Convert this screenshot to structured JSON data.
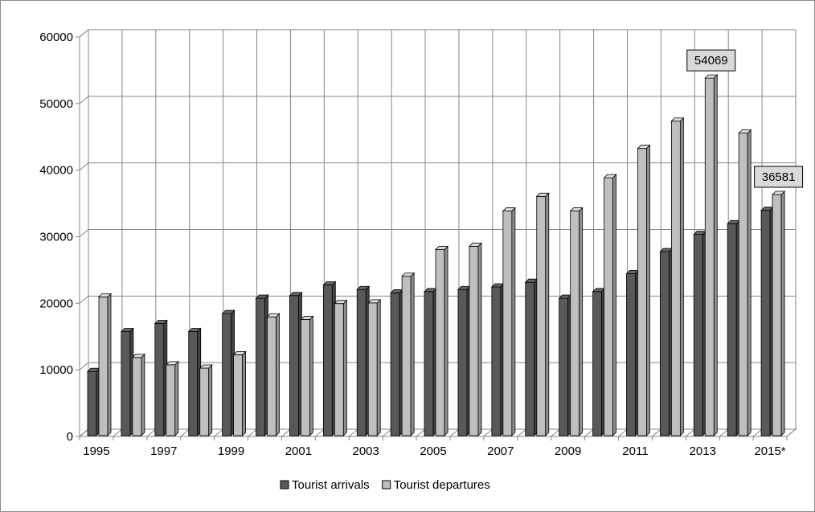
{
  "chart_data": {
    "type": "bar",
    "style": "3d-clustered-column",
    "categories": [
      "1995",
      "1996",
      "1997",
      "1998",
      "1999",
      "2000",
      "2001",
      "2002",
      "2003",
      "2004",
      "2005",
      "2006",
      "2007",
      "2008",
      "2009",
      "2010",
      "2011",
      "2012",
      "2013",
      "2014",
      "2015*"
    ],
    "x_tick_labels": [
      "1995",
      "1997",
      "1999",
      "2001",
      "2003",
      "2005",
      "2007",
      "2009",
      "2011",
      "2013",
      "2015*"
    ],
    "series": [
      {
        "name": "Tourist arrivals",
        "color": "#595959",
        "values": [
          10000,
          16000,
          17200,
          16000,
          18700,
          21000,
          21400,
          23000,
          22300,
          21800,
          22000,
          22300,
          22700,
          23400,
          21000,
          22000,
          24700,
          28000,
          30600,
          32200,
          34200
        ]
      },
      {
        "name": "Tourist departures",
        "color": "#bfbfbf",
        "values": [
          21200,
          12100,
          11000,
          10500,
          12500,
          18200,
          17800,
          20200,
          20300,
          24300,
          28300,
          28800,
          34100,
          36300,
          34100,
          39100,
          43500,
          47600,
          54069,
          45800,
          36581
        ]
      }
    ],
    "data_labels": [
      {
        "series": "Tourist departures",
        "category": "2013",
        "text": "54069"
      },
      {
        "series": "Tourist departures",
        "category": "2015*",
        "text": "36581"
      }
    ],
    "ylim": [
      0,
      60000
    ],
    "y_ticks": [
      "0",
      "10000",
      "20000",
      "30000",
      "40000",
      "50000",
      "60000"
    ],
    "title": "",
    "xlabel": "",
    "ylabel": "",
    "grid": true,
    "legend_position": "bottom"
  }
}
